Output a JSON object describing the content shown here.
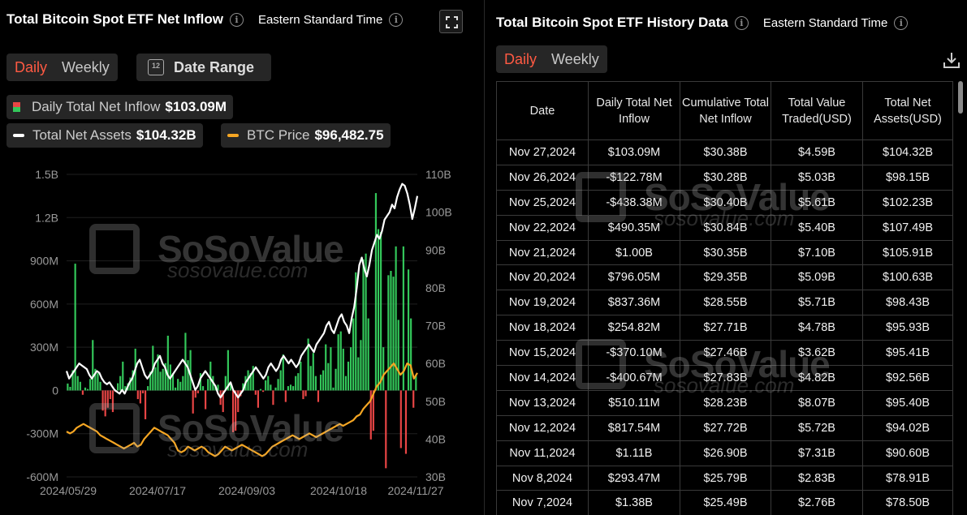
{
  "left": {
    "title": "Total Bitcoin Spot ETF Net Inflow",
    "timezone": "Eastern Standard Time",
    "tabs": [
      "Daily",
      "Weekly"
    ],
    "date_range_label": "Date Range",
    "calendar_number": "12",
    "legend": {
      "inflow_label": "Daily Total Net Inflow",
      "inflow_value": "$103.09M",
      "assets_label": "Total Net Assets",
      "assets_value": "$104.32B",
      "btc_label": "BTC Price",
      "btc_value": "$96,482.75"
    },
    "watermark": {
      "brand": "SoSoValue",
      "site": "sosovalue.com"
    }
  },
  "colors": {
    "positive": "#33c75a",
    "negative": "#e84545",
    "assets_line": "#ffffff",
    "btc_line": "#f5a623",
    "active_tab": "#ff5a43"
  },
  "chart_data": {
    "type": "bar",
    "title": "Total Bitcoin Spot ETF Net Inflow",
    "left_axis": {
      "ticks": [
        "1.5B",
        "1.2B",
        "900M",
        "600M",
        "300M",
        "0",
        "-300M",
        "-600M"
      ],
      "range": [
        -600,
        1500
      ],
      "unit": "M"
    },
    "right_axis": {
      "ticks": [
        "110B",
        "100B",
        "90B",
        "80B",
        "70B",
        "60B",
        "50B",
        "40B",
        "30B"
      ],
      "range": [
        30,
        110
      ],
      "unit": "B"
    },
    "x_ticks": [
      "2024/05/29",
      "2024/07/17",
      "2024/09/03",
      "2024/10/18",
      "2024/11/27"
    ],
    "series": [
      {
        "name": "Daily Total Net Inflow",
        "kind": "bar",
        "values": [
          48,
          25,
          140,
          880,
          100,
          60,
          -30,
          20,
          10,
          80,
          350,
          150,
          120,
          60,
          -140,
          -180,
          -120,
          -60,
          -150,
          -10,
          50,
          100,
          200,
          30,
          50,
          90,
          140,
          290,
          -60,
          -90,
          -20,
          -200,
          30,
          130,
          310,
          160,
          250,
          130,
          150,
          190,
          380,
          180,
          120,
          20,
          80,
          60,
          100,
          400,
          210,
          280,
          -160,
          -50,
          -20,
          120,
          30,
          -130,
          80,
          200,
          100,
          30,
          40,
          -100,
          -150,
          100,
          280,
          50,
          -290,
          -280,
          -150,
          -40,
          50,
          100,
          140,
          120,
          170,
          -30,
          -120,
          10,
          -10,
          70,
          100,
          40,
          -100,
          20,
          80,
          140,
          250,
          -80,
          30,
          40,
          30,
          100,
          120,
          200,
          -60,
          -40,
          360,
          170,
          260,
          100,
          -80,
          110,
          140,
          320,
          190,
          300,
          20,
          150,
          390,
          410,
          290,
          100,
          200,
          300,
          500,
          820,
          230,
          350,
          910,
          950,
          500,
          -340,
          -280,
          1370,
          1120,
          1100,
          300,
          -540,
          800,
          830,
          790,
          1000,
          490,
          -400,
          1000,
          -440,
          840,
          500,
          -120,
          103
        ]
      },
      {
        "name": "Total Net Assets",
        "kind": "line",
        "values": [
          58,
          56,
          57,
          58,
          59,
          60,
          59.5,
          59,
          58.5,
          57,
          56,
          57,
          58,
          57.5,
          56,
          55,
          54.5,
          55,
          54,
          53,
          52.5,
          52,
          53,
          52,
          53.5,
          55,
          56,
          58,
          60,
          61,
          59,
          57,
          56,
          57,
          58,
          60,
          61,
          62,
          60,
          59,
          57,
          56,
          57,
          58,
          59,
          60,
          61,
          60,
          59,
          57,
          55,
          53,
          54,
          56,
          57,
          58,
          57,
          56,
          55,
          54,
          52,
          51,
          52,
          53,
          54,
          55,
          53,
          52,
          51,
          52,
          53,
          55,
          56,
          57,
          58,
          59,
          58,
          57,
          56,
          57,
          59,
          60,
          59,
          58,
          59,
          61,
          62,
          61,
          60,
          61,
          60,
          59,
          60,
          62,
          63,
          64,
          65,
          64,
          63,
          65,
          66,
          67,
          68,
          70,
          71,
          69,
          68,
          70,
          72,
          73,
          71,
          70,
          68,
          72,
          75,
          80,
          86,
          88,
          85,
          83,
          86,
          90,
          92,
          94,
          93,
          95,
          98,
          99,
          100,
          102,
          101,
          104,
          106,
          107.5,
          107,
          105,
          102,
          98.2,
          101,
          104.3
        ]
      },
      {
        "name": "BTC Price",
        "kind": "line",
        "values": [
          42,
          41.5,
          42,
          43,
          43.5,
          44,
          43.5,
          43,
          42.5,
          42,
          41,
          40.5,
          40,
          39.5,
          39,
          38.5,
          38,
          37.5,
          38,
          38.5,
          39,
          38,
          38.5,
          40,
          41,
          42,
          43,
          42.5,
          42,
          41.5,
          41,
          40,
          39,
          37,
          36.5,
          37,
          38,
          37.5,
          37,
          37.5,
          38,
          37.5,
          36.5,
          36,
          35.5,
          36,
          37,
          38,
          37.5,
          37,
          37.5,
          38,
          38.5,
          38,
          37.5,
          37,
          36.5,
          36,
          35.5,
          36,
          37,
          38,
          38.5,
          39,
          39.5,
          40,
          40.5,
          41,
          40.5,
          40,
          40.5,
          41,
          41.5,
          41,
          40.5,
          41,
          41.5,
          42,
          42.5,
          43,
          43.5,
          44,
          43.5,
          44,
          44.5,
          45,
          46,
          46.5,
          48,
          49,
          50,
          52,
          54,
          55,
          57,
          58,
          59,
          60,
          58.5,
          57,
          58,
          60,
          59.5,
          56,
          57.5
        ]
      }
    ],
    "legend_position": "top-left",
    "grid": true
  },
  "right": {
    "title": "Total Bitcoin Spot ETF History Data",
    "timezone": "Eastern Standard Time",
    "tabs": [
      "Daily",
      "Weekly"
    ],
    "columns": [
      "Date",
      "Daily Total Net Inflow",
      "Cumulative Total Net Inflow",
      "Total Value Traded(USD)",
      "Total Net Assets(USD)"
    ],
    "rows": [
      {
        "date": "Nov 27,2024",
        "inflow": "$103.09M",
        "sign": "pos",
        "cum": "$30.38B",
        "traded": "$4.59B",
        "assets": "$104.32B"
      },
      {
        "date": "Nov 26,2024",
        "inflow": "-$122.78M",
        "sign": "neg",
        "cum": "$30.28B",
        "traded": "$5.03B",
        "assets": "$98.15B"
      },
      {
        "date": "Nov 25,2024",
        "inflow": "-$438.38M",
        "sign": "neg",
        "cum": "$30.40B",
        "traded": "$5.61B",
        "assets": "$102.23B"
      },
      {
        "date": "Nov 22,2024",
        "inflow": "$490.35M",
        "sign": "pos",
        "cum": "$30.84B",
        "traded": "$5.40B",
        "assets": "$107.49B"
      },
      {
        "date": "Nov 21,2024",
        "inflow": "$1.00B",
        "sign": "pos",
        "cum": "$30.35B",
        "traded": "$7.10B",
        "assets": "$105.91B"
      },
      {
        "date": "Nov 20,2024",
        "inflow": "$796.05M",
        "sign": "pos",
        "cum": "$29.35B",
        "traded": "$5.09B",
        "assets": "$100.63B"
      },
      {
        "date": "Nov 19,2024",
        "inflow": "$837.36M",
        "sign": "pos",
        "cum": "$28.55B",
        "traded": "$5.71B",
        "assets": "$98.43B"
      },
      {
        "date": "Nov 18,2024",
        "inflow": "$254.82M",
        "sign": "pos",
        "cum": "$27.71B",
        "traded": "$4.78B",
        "assets": "$95.93B"
      },
      {
        "date": "Nov 15,2024",
        "inflow": "-$370.10M",
        "sign": "neg",
        "cum": "$27.46B",
        "traded": "$3.62B",
        "assets": "$95.41B"
      },
      {
        "date": "Nov 14,2024",
        "inflow": "-$400.67M",
        "sign": "neg",
        "cum": "$27.83B",
        "traded": "$4.82B",
        "assets": "$92.56B"
      },
      {
        "date": "Nov 13,2024",
        "inflow": "$510.11M",
        "sign": "pos",
        "cum": "$28.23B",
        "traded": "$8.07B",
        "assets": "$95.40B"
      },
      {
        "date": "Nov 12,2024",
        "inflow": "$817.54M",
        "sign": "pos",
        "cum": "$27.72B",
        "traded": "$5.72B",
        "assets": "$94.02B"
      },
      {
        "date": "Nov 11,2024",
        "inflow": "$1.11B",
        "sign": "pos",
        "cum": "$26.90B",
        "traded": "$7.31B",
        "assets": "$90.60B"
      },
      {
        "date": "Nov 8,2024",
        "inflow": "$293.47M",
        "sign": "pos",
        "cum": "$25.79B",
        "traded": "$2.83B",
        "assets": "$78.91B"
      },
      {
        "date": "Nov 7,2024",
        "inflow": "$1.38B",
        "sign": "pos",
        "cum": "$25.49B",
        "traded": "$2.76B",
        "assets": "$78.50B"
      }
    ]
  }
}
